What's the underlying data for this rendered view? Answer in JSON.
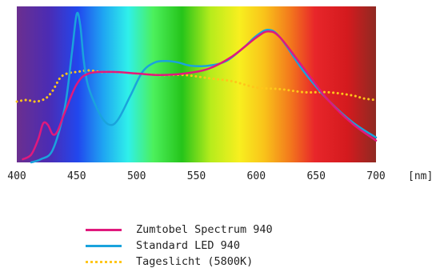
{
  "chart_data": {
    "type": "line",
    "xlim": [
      400,
      700
    ],
    "ylim": [
      0,
      1
    ],
    "x_unit": "[nm]",
    "x_ticks": [
      400,
      450,
      500,
      550,
      600,
      650,
      700
    ],
    "background": "visible-spectrum-gradient",
    "series": [
      {
        "name": "Zumtobel Spectrum 940",
        "color": "#e0197d",
        "style": "solid",
        "x": [
          405,
          412,
          418,
          422,
          426,
          430,
          434,
          440,
          450,
          460,
          480,
          500,
          520,
          540,
          560,
          580,
          600,
          610,
          620,
          640,
          660,
          680,
          700
        ],
        "y": [
          0.02,
          0.05,
          0.15,
          0.25,
          0.24,
          0.18,
          0.2,
          0.32,
          0.5,
          0.57,
          0.58,
          0.57,
          0.56,
          0.57,
          0.6,
          0.68,
          0.8,
          0.84,
          0.8,
          0.6,
          0.4,
          0.25,
          0.14
        ]
      },
      {
        "name": "Standard LED 940",
        "color": "#1aa3dc",
        "style": "solid",
        "x": [
          412,
          420,
          430,
          440,
          446,
          450,
          453,
          456,
          460,
          470,
          478,
          485,
          495,
          505,
          515,
          525,
          535,
          545,
          560,
          575,
          590,
          600,
          610,
          620,
          640,
          660,
          680,
          700
        ],
        "y": [
          0.0,
          0.02,
          0.08,
          0.35,
          0.7,
          0.95,
          0.88,
          0.65,
          0.48,
          0.3,
          0.24,
          0.28,
          0.43,
          0.58,
          0.64,
          0.65,
          0.64,
          0.62,
          0.62,
          0.65,
          0.74,
          0.81,
          0.85,
          0.8,
          0.58,
          0.4,
          0.26,
          0.16
        ]
      },
      {
        "name": "Tageslicht (5800K)",
        "color": "#ffc61a",
        "style": "dotted",
        "x": [
          400,
          408,
          416,
          424,
          430,
          436,
          442,
          450,
          460,
          470,
          480,
          500,
          520,
          540,
          560,
          580,
          600,
          620,
          640,
          660,
          680,
          690,
          700
        ],
        "y": [
          0.39,
          0.4,
          0.39,
          0.41,
          0.46,
          0.54,
          0.57,
          0.58,
          0.59,
          0.58,
          0.58,
          0.57,
          0.56,
          0.56,
          0.54,
          0.52,
          0.48,
          0.47,
          0.45,
          0.45,
          0.43,
          0.41,
          0.4
        ]
      }
    ]
  }
}
